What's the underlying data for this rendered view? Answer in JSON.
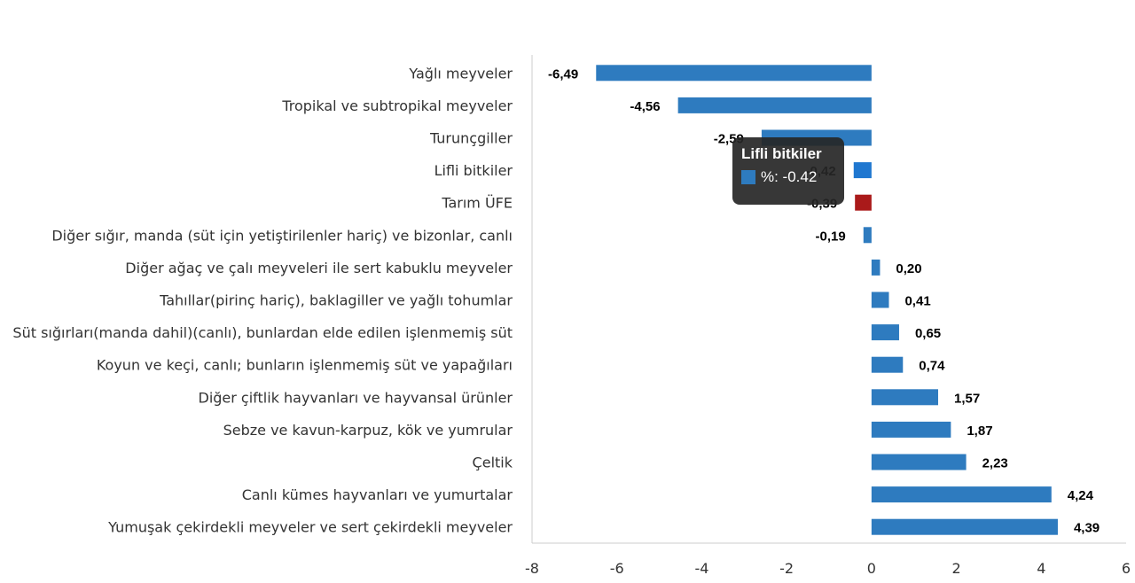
{
  "chart_data": {
    "type": "bar",
    "orientation": "horizontal",
    "title": "",
    "xlabel": "",
    "ylabel": "",
    "xlim": [
      -8,
      6
    ],
    "xticks": [
      -8,
      -6,
      -4,
      -2,
      0,
      2,
      4,
      6
    ],
    "grid": false,
    "categories": [
      "Yağlı meyveler",
      "Tropikal ve subtropikal meyveler",
      "Turunçgiller",
      "Lifli bitkiler",
      "Tarım ÜFE",
      "Diğer sığır, manda (süt için yetiştirilenler hariç) ve bizonlar, canlı",
      "Diğer ağaç ve çalı meyveleri ile sert kabuklu meyveler",
      "Tahıllar(pirinç hariç), baklagiller ve yağlı tohumlar",
      "Süt sığırları(manda dahil)(canlı), bunlardan elde edilen işlenmemiş süt",
      "Koyun ve keçi, canlı; bunların işlenmemiş süt ve yapağıları",
      "Diğer çiftlik hayvanları ve hayvansal ürünler",
      "Sebze ve kavun-karpuz, kök ve yumrular",
      "Çeltik",
      "Canlı kümes hayvanları ve yumurtalar",
      "Yumuşak çekirdekli meyveler ve sert çekirdekli meyveler"
    ],
    "values": [
      -6.49,
      -4.56,
      -2.59,
      -0.42,
      -0.39,
      -0.19,
      0.2,
      0.41,
      0.65,
      0.74,
      1.57,
      1.87,
      2.23,
      4.24,
      4.39
    ],
    "value_labels": [
      "-6,49",
      "-4,56",
      "-2,59",
      "-0,42",
      "-0,39",
      "-0,19",
      "0,20",
      "0,41",
      "0,65",
      "0,74",
      "1,57",
      "1,87",
      "2,23",
      "4,24",
      "4,39"
    ],
    "colors": {
      "default": "#2E7BBF",
      "highlight_category": "Tarım ÜFE",
      "highlight": "#AA1A1A",
      "hover_category": "Lifli bitkiler",
      "hover": "#1F77D0"
    },
    "tooltip": {
      "title": "Lifli bitkiler",
      "text": "%: -0.42",
      "swatch_color": "#2E7BBF"
    }
  }
}
